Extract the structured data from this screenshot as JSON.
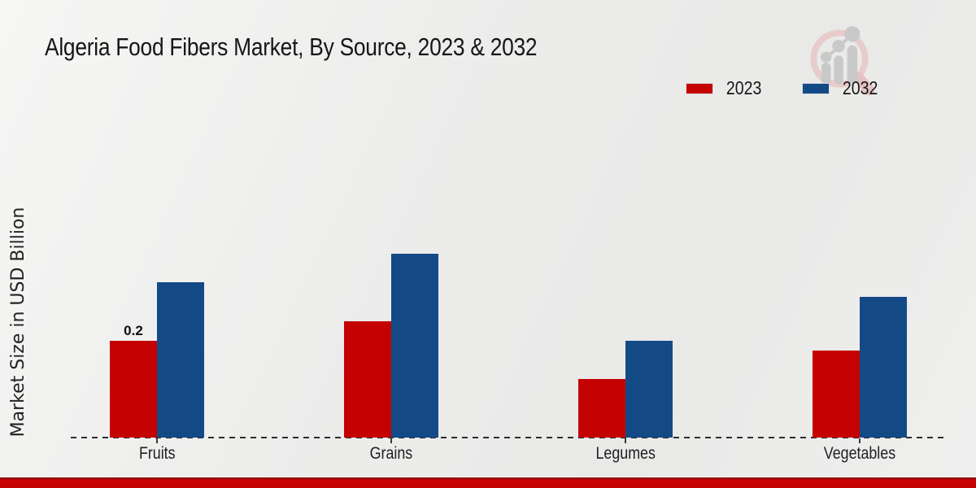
{
  "page": {
    "title_text": "Algeria Food Fibers Market, By Source, 2023 & 2032"
  },
  "y_axis": {
    "label": "Market Size in USD Billion"
  },
  "legend": {
    "items": [
      {
        "label": "2023",
        "color": "#c40202"
      },
      {
        "label": "2032",
        "color": "#134a86"
      }
    ]
  },
  "watermark": {
    "icon": "magnifier-growth-chart-logo",
    "ring_color": "#e8cbcb",
    "bars_color": "#c9c9c9"
  },
  "footer": {
    "bar_color": "#c30202"
  },
  "chart_data": {
    "type": "bar",
    "title": "Algeria Food Fibers Market, By Source, 2023 & 2032",
    "xlabel": "",
    "ylabel": "Market Size in USD Billion",
    "categories": [
      "Fruits",
      "Grains",
      "Legumes",
      "Vegetables"
    ],
    "series": [
      {
        "name": "2023",
        "color": "#c40202",
        "values": [
          0.2,
          0.24,
          0.12,
          0.18
        ]
      },
      {
        "name": "2032",
        "color": "#134a86",
        "values": [
          0.32,
          0.38,
          0.2,
          0.29
        ]
      }
    ],
    "data_labels": [
      {
        "series": "2023",
        "category": "Fruits",
        "text": "0.2"
      }
    ],
    "ylim": [
      0,
      0.45
    ],
    "grid": false,
    "y_axis_ticks_visible": false,
    "x_baseline_style": "dashed",
    "legend_position": "top-right"
  }
}
